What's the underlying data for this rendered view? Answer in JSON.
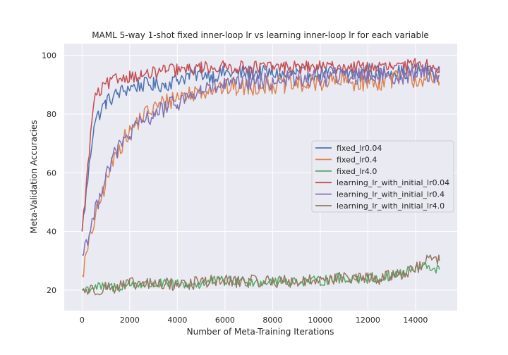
{
  "chart_data": {
    "type": "line",
    "title": "MAML 5-way 1-shot fixed inner-loop lr vs learning inner-loop lr for each variable",
    "xlabel": "Number of Meta-Training Iterations",
    "ylabel": "Meta-Validation Accuracies",
    "xlim": [
      -750,
      15750
    ],
    "ylim": [
      13,
      104
    ],
    "xticks": [
      0,
      2000,
      4000,
      6000,
      8000,
      10000,
      12000,
      14000
    ],
    "yticks": [
      20,
      40,
      60,
      80,
      100
    ],
    "grid": true,
    "legend_position": "center-right",
    "sample_step": 500,
    "series": [
      {
        "name": "fixed_lr0.04",
        "color": "#4c72b0",
        "x": [
          0,
          500,
          1000,
          1500,
          2000,
          2500,
          3000,
          3500,
          4000,
          4500,
          5000,
          5500,
          6000,
          6500,
          7000,
          7500,
          8000,
          8500,
          9000,
          9500,
          10000,
          10500,
          11000,
          11500,
          12000,
          12500,
          13000,
          13500,
          14000,
          14500,
          15000
        ],
        "y": [
          40,
          77,
          84,
          87,
          89,
          90,
          90,
          90,
          92,
          93,
          94,
          93,
          94,
          94,
          94,
          94,
          94,
          93,
          94,
          94,
          94,
          94,
          94,
          94,
          95,
          94,
          95,
          94,
          95,
          95,
          94
        ]
      },
      {
        "name": "fixed_lr0.4",
        "color": "#dd8452",
        "x": [
          0,
          500,
          1000,
          1500,
          2000,
          2500,
          3000,
          3500,
          4000,
          4500,
          5000,
          5500,
          6000,
          6500,
          7000,
          7500,
          8000,
          8500,
          9000,
          9500,
          10000,
          10500,
          11000,
          11500,
          12000,
          12500,
          13000,
          13500,
          14000,
          14500,
          15000
        ],
        "y": [
          25,
          43,
          57,
          68,
          74,
          79,
          82,
          84,
          86,
          87,
          88,
          89,
          89,
          89,
          89,
          90,
          90,
          90,
          90,
          90,
          91,
          91,
          91,
          91,
          91,
          91,
          92,
          92,
          92,
          92,
          91
        ]
      },
      {
        "name": "fixed_lr4.0",
        "color": "#55a868",
        "x": [
          0,
          500,
          1000,
          1500,
          2000,
          2500,
          3000,
          3500,
          4000,
          4500,
          5000,
          5500,
          6000,
          6500,
          7000,
          7500,
          8000,
          8500,
          9000,
          9500,
          10000,
          10500,
          11000,
          11500,
          12000,
          12500,
          13000,
          13500,
          14000,
          14500,
          15000
        ],
        "y": [
          20,
          21,
          21,
          21,
          22,
          22,
          22,
          22,
          22,
          22,
          22,
          23,
          23,
          23,
          23,
          23,
          23,
          23,
          23,
          23,
          23,
          24,
          24,
          24,
          24,
          24,
          25,
          26,
          27,
          28,
          27
        ]
      },
      {
        "name": "learning_lr_with_initial_lr0.04",
        "color": "#c44e52",
        "x": [
          0,
          500,
          1000,
          1500,
          2000,
          2500,
          3000,
          3500,
          4000,
          4500,
          5000,
          5500,
          6000,
          6500,
          7000,
          7500,
          8000,
          8500,
          9000,
          9500,
          10000,
          10500,
          11000,
          11500,
          12000,
          12500,
          13000,
          13500,
          14000,
          14500,
          15000
        ],
        "y": [
          40,
          85,
          90,
          92,
          93,
          93,
          94,
          95,
          95,
          95,
          96,
          96,
          96,
          96,
          96,
          96,
          96,
          96,
          96,
          96,
          96,
          96,
          96,
          96,
          96,
          96,
          96,
          96,
          97,
          97,
          96
        ]
      },
      {
        "name": "learning_lr_with_initial_lr0.4",
        "color": "#8172b3",
        "x": [
          0,
          500,
          1000,
          1500,
          2000,
          2500,
          3000,
          3500,
          4000,
          4500,
          5000,
          5500,
          6000,
          6500,
          7000,
          7500,
          8000,
          8500,
          9000,
          9500,
          10000,
          10500,
          11000,
          11500,
          12000,
          12500,
          13000,
          13500,
          14000,
          14500,
          15000
        ],
        "y": [
          32,
          45,
          60,
          68,
          73,
          77,
          80,
          82,
          84,
          86,
          88,
          89,
          90,
          90,
          91,
          91,
          91,
          92,
          92,
          92,
          92,
          93,
          93,
          93,
          93,
          93,
          93,
          93,
          94,
          94,
          93
        ]
      },
      {
        "name": "learning_lr_with_initial_lr4.0",
        "color": "#937860",
        "x": [
          0,
          500,
          1000,
          1500,
          2000,
          2500,
          3000,
          3500,
          4000,
          4500,
          5000,
          5500,
          6000,
          6500,
          7000,
          7500,
          8000,
          8500,
          9000,
          9500,
          10000,
          10500,
          11000,
          11500,
          12000,
          12500,
          13000,
          13500,
          14000,
          14500,
          15000
        ],
        "y": [
          20,
          20,
          21,
          21,
          22,
          22,
          22,
          22,
          22,
          22,
          23,
          23,
          23,
          23,
          23,
          23,
          23,
          23,
          23,
          23,
          24,
          24,
          24,
          24,
          24,
          24,
          25,
          26,
          27,
          30,
          30
        ]
      }
    ]
  }
}
